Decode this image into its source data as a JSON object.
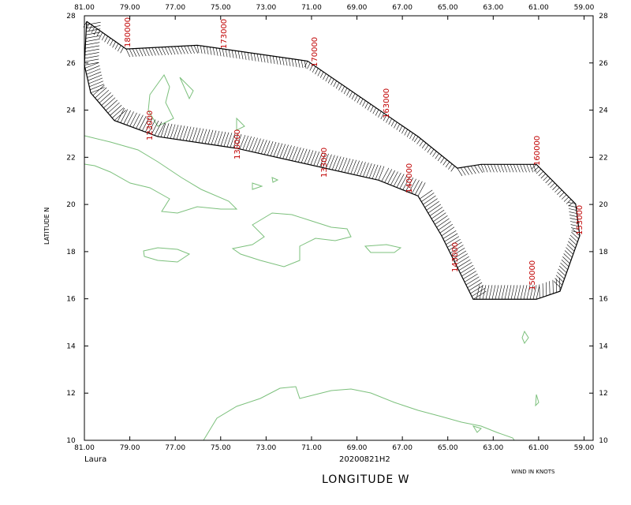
{
  "chart_data": {
    "type": "track-map",
    "storm": "Laura",
    "mission": "20200821H2",
    "xlabel": "LONGITUDE   W",
    "ylabel": "LATITUDE   N",
    "note": "WIND IN KNOTS",
    "xlim": [
      81,
      58.6
    ],
    "ylim": [
      10,
      28
    ],
    "xticks": [
      {
        "value": 81,
        "label": "81.00"
      },
      {
        "value": 79,
        "label": "79.00"
      },
      {
        "value": 77,
        "label": "77.00"
      },
      {
        "value": 75,
        "label": "75.00"
      },
      {
        "value": 73,
        "label": "73.00"
      },
      {
        "value": 71,
        "label": "71.00"
      },
      {
        "value": 69,
        "label": "69.00"
      },
      {
        "value": 67,
        "label": "67.00"
      },
      {
        "value": 65,
        "label": "65.00"
      },
      {
        "value": 63,
        "label": "63.00"
      },
      {
        "value": 61,
        "label": "61.00"
      },
      {
        "value": 59,
        "label": "59.00"
      }
    ],
    "yticks": [
      10,
      12,
      14,
      16,
      18,
      20,
      22,
      24,
      26,
      28
    ],
    "track_color": "#000000",
    "x": [
      80.9,
      79.16,
      76.03,
      71.17,
      66.31,
      64.58,
      63.53,
      61.1,
      59.37,
      59.19,
      60.06,
      61.1,
      63.88,
      65.27,
      66.31,
      68.05,
      74.3,
      77.77,
      79.68,
      80.72,
      81.0,
      80.9
    ],
    "y": [
      27.76,
      26.59,
      26.75,
      26.08,
      22.88,
      21.54,
      21.7,
      21.7,
      20.02,
      18.67,
      16.32,
      15.98,
      15.98,
      18.67,
      20.36,
      21.03,
      22.38,
      22.88,
      23.56,
      24.73,
      25.91,
      27.76
    ],
    "time_labels": [
      "180000",
      "173000",
      "170000",
      "163000",
      "160000",
      "153000",
      "150000",
      "143000",
      "140000",
      "133000",
      "130000",
      "123000"
    ]
  }
}
